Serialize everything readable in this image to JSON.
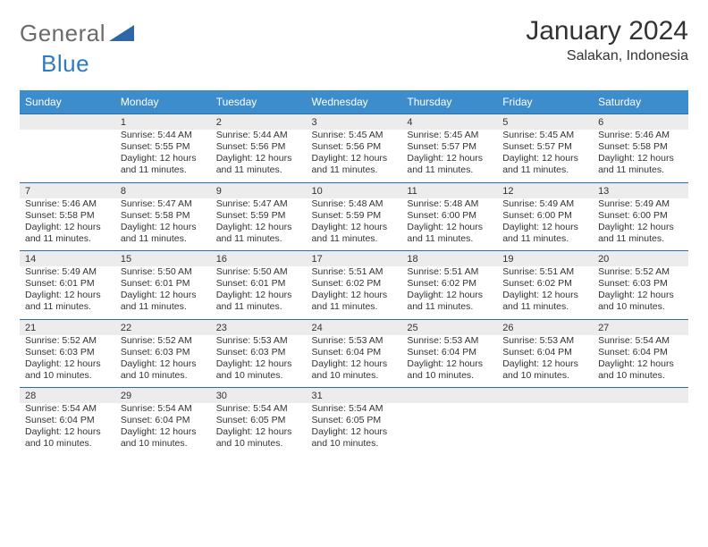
{
  "logo": {
    "part1": "General",
    "part2": "Blue"
  },
  "colors": {
    "header_bg": "#3d8dcc",
    "header_fg": "#ffffff",
    "daynum_bg": "#ececec",
    "row_divider": "#2c6fa8",
    "logo_shape": "#2f66a8"
  },
  "title": "January 2024",
  "location": "Salakan, Indonesia",
  "weekdays": [
    "Sunday",
    "Monday",
    "Tuesday",
    "Wednesday",
    "Thursday",
    "Friday",
    "Saturday"
  ],
  "weeks": [
    {
      "days": [
        {
          "num": "",
          "sunrise": "",
          "sunset": "",
          "daylight": ""
        },
        {
          "num": "1",
          "sunrise": "Sunrise: 5:44 AM",
          "sunset": "Sunset: 5:55 PM",
          "daylight": "Daylight: 12 hours and 11 minutes."
        },
        {
          "num": "2",
          "sunrise": "Sunrise: 5:44 AM",
          "sunset": "Sunset: 5:56 PM",
          "daylight": "Daylight: 12 hours and 11 minutes."
        },
        {
          "num": "3",
          "sunrise": "Sunrise: 5:45 AM",
          "sunset": "Sunset: 5:56 PM",
          "daylight": "Daylight: 12 hours and 11 minutes."
        },
        {
          "num": "4",
          "sunrise": "Sunrise: 5:45 AM",
          "sunset": "Sunset: 5:57 PM",
          "daylight": "Daylight: 12 hours and 11 minutes."
        },
        {
          "num": "5",
          "sunrise": "Sunrise: 5:45 AM",
          "sunset": "Sunset: 5:57 PM",
          "daylight": "Daylight: 12 hours and 11 minutes."
        },
        {
          "num": "6",
          "sunrise": "Sunrise: 5:46 AM",
          "sunset": "Sunset: 5:58 PM",
          "daylight": "Daylight: 12 hours and 11 minutes."
        }
      ]
    },
    {
      "days": [
        {
          "num": "7",
          "sunrise": "Sunrise: 5:46 AM",
          "sunset": "Sunset: 5:58 PM",
          "daylight": "Daylight: 12 hours and 11 minutes."
        },
        {
          "num": "8",
          "sunrise": "Sunrise: 5:47 AM",
          "sunset": "Sunset: 5:58 PM",
          "daylight": "Daylight: 12 hours and 11 minutes."
        },
        {
          "num": "9",
          "sunrise": "Sunrise: 5:47 AM",
          "sunset": "Sunset: 5:59 PM",
          "daylight": "Daylight: 12 hours and 11 minutes."
        },
        {
          "num": "10",
          "sunrise": "Sunrise: 5:48 AM",
          "sunset": "Sunset: 5:59 PM",
          "daylight": "Daylight: 12 hours and 11 minutes."
        },
        {
          "num": "11",
          "sunrise": "Sunrise: 5:48 AM",
          "sunset": "Sunset: 6:00 PM",
          "daylight": "Daylight: 12 hours and 11 minutes."
        },
        {
          "num": "12",
          "sunrise": "Sunrise: 5:49 AM",
          "sunset": "Sunset: 6:00 PM",
          "daylight": "Daylight: 12 hours and 11 minutes."
        },
        {
          "num": "13",
          "sunrise": "Sunrise: 5:49 AM",
          "sunset": "Sunset: 6:00 PM",
          "daylight": "Daylight: 12 hours and 11 minutes."
        }
      ]
    },
    {
      "days": [
        {
          "num": "14",
          "sunrise": "Sunrise: 5:49 AM",
          "sunset": "Sunset: 6:01 PM",
          "daylight": "Daylight: 12 hours and 11 minutes."
        },
        {
          "num": "15",
          "sunrise": "Sunrise: 5:50 AM",
          "sunset": "Sunset: 6:01 PM",
          "daylight": "Daylight: 12 hours and 11 minutes."
        },
        {
          "num": "16",
          "sunrise": "Sunrise: 5:50 AM",
          "sunset": "Sunset: 6:01 PM",
          "daylight": "Daylight: 12 hours and 11 minutes."
        },
        {
          "num": "17",
          "sunrise": "Sunrise: 5:51 AM",
          "sunset": "Sunset: 6:02 PM",
          "daylight": "Daylight: 12 hours and 11 minutes."
        },
        {
          "num": "18",
          "sunrise": "Sunrise: 5:51 AM",
          "sunset": "Sunset: 6:02 PM",
          "daylight": "Daylight: 12 hours and 11 minutes."
        },
        {
          "num": "19",
          "sunrise": "Sunrise: 5:51 AM",
          "sunset": "Sunset: 6:02 PM",
          "daylight": "Daylight: 12 hours and 11 minutes."
        },
        {
          "num": "20",
          "sunrise": "Sunrise: 5:52 AM",
          "sunset": "Sunset: 6:03 PM",
          "daylight": "Daylight: 12 hours and 10 minutes."
        }
      ]
    },
    {
      "days": [
        {
          "num": "21",
          "sunrise": "Sunrise: 5:52 AM",
          "sunset": "Sunset: 6:03 PM",
          "daylight": "Daylight: 12 hours and 10 minutes."
        },
        {
          "num": "22",
          "sunrise": "Sunrise: 5:52 AM",
          "sunset": "Sunset: 6:03 PM",
          "daylight": "Daylight: 12 hours and 10 minutes."
        },
        {
          "num": "23",
          "sunrise": "Sunrise: 5:53 AM",
          "sunset": "Sunset: 6:03 PM",
          "daylight": "Daylight: 12 hours and 10 minutes."
        },
        {
          "num": "24",
          "sunrise": "Sunrise: 5:53 AM",
          "sunset": "Sunset: 6:04 PM",
          "daylight": "Daylight: 12 hours and 10 minutes."
        },
        {
          "num": "25",
          "sunrise": "Sunrise: 5:53 AM",
          "sunset": "Sunset: 6:04 PM",
          "daylight": "Daylight: 12 hours and 10 minutes."
        },
        {
          "num": "26",
          "sunrise": "Sunrise: 5:53 AM",
          "sunset": "Sunset: 6:04 PM",
          "daylight": "Daylight: 12 hours and 10 minutes."
        },
        {
          "num": "27",
          "sunrise": "Sunrise: 5:54 AM",
          "sunset": "Sunset: 6:04 PM",
          "daylight": "Daylight: 12 hours and 10 minutes."
        }
      ]
    },
    {
      "days": [
        {
          "num": "28",
          "sunrise": "Sunrise: 5:54 AM",
          "sunset": "Sunset: 6:04 PM",
          "daylight": "Daylight: 12 hours and 10 minutes."
        },
        {
          "num": "29",
          "sunrise": "Sunrise: 5:54 AM",
          "sunset": "Sunset: 6:04 PM",
          "daylight": "Daylight: 12 hours and 10 minutes."
        },
        {
          "num": "30",
          "sunrise": "Sunrise: 5:54 AM",
          "sunset": "Sunset: 6:05 PM",
          "daylight": "Daylight: 12 hours and 10 minutes."
        },
        {
          "num": "31",
          "sunrise": "Sunrise: 5:54 AM",
          "sunset": "Sunset: 6:05 PM",
          "daylight": "Daylight: 12 hours and 10 minutes."
        },
        {
          "num": "",
          "sunrise": "",
          "sunset": "",
          "daylight": ""
        },
        {
          "num": "",
          "sunrise": "",
          "sunset": "",
          "daylight": ""
        },
        {
          "num": "",
          "sunrise": "",
          "sunset": "",
          "daylight": ""
        }
      ]
    }
  ]
}
